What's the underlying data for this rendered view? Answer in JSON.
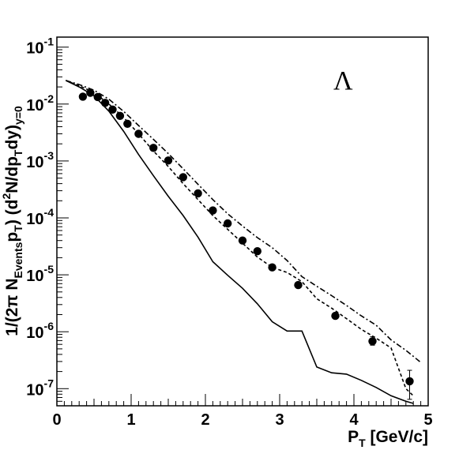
{
  "chart_data": {
    "type": "scatter",
    "annotation": "Λ",
    "xlabel": {
      "main": "P",
      "sub": "T",
      "rest": " [GeV/c]"
    },
    "ylabel": {
      "parts": [
        {
          "t": "1/(2π N",
          "s": "n"
        },
        {
          "t": "Events",
          "s": "sub"
        },
        {
          "t": "p",
          "s": "n"
        },
        {
          "t": "T",
          "s": "sub"
        },
        {
          "t": ") (d",
          "s": "n"
        },
        {
          "t": "2",
          "s": "sup"
        },
        {
          "t": "N/dp",
          "s": "n"
        },
        {
          "t": "T",
          "s": "sub"
        },
        {
          "t": "dy)",
          "s": "n"
        },
        {
          "t": "y=0",
          "s": "sub"
        }
      ]
    },
    "xlim": [
      0,
      5
    ],
    "ylim": [
      5e-08,
      0.15
    ],
    "ylog": true,
    "grid": false,
    "x_ticks": [
      {
        "v": 0,
        "label": "0"
      },
      {
        "v": 1,
        "label": "1"
      },
      {
        "v": 2,
        "label": "2"
      },
      {
        "v": 3,
        "label": "3"
      },
      {
        "v": 4,
        "label": "4"
      },
      {
        "v": 5,
        "label": "5"
      }
    ],
    "y_ticks": [
      {
        "v": 1e-07,
        "base": "10",
        "exp": "-7"
      },
      {
        "v": 1e-06,
        "base": "10",
        "exp": "-6"
      },
      {
        "v": 1e-05,
        "base": "10",
        "exp": "-5"
      },
      {
        "v": 0.0001,
        "base": "10",
        "exp": "-4"
      },
      {
        "v": 0.001,
        "base": "10",
        "exp": "-3"
      },
      {
        "v": 0.01,
        "base": "10",
        "exp": "-2"
      },
      {
        "v": 0.1,
        "base": "10",
        "exp": "-1"
      }
    ],
    "points": [
      {
        "x": 0.35,
        "y": 0.0135
      },
      {
        "x": 0.45,
        "y": 0.0158
      },
      {
        "x": 0.55,
        "y": 0.0133
      },
      {
        "x": 0.65,
        "y": 0.0105
      },
      {
        "x": 0.75,
        "y": 0.008
      },
      {
        "x": 0.85,
        "y": 0.0062
      },
      {
        "x": 0.95,
        "y": 0.0045
      },
      {
        "x": 1.1,
        "y": 0.003
      },
      {
        "x": 1.3,
        "y": 0.0017
      },
      {
        "x": 1.5,
        "y": 0.00102
      },
      {
        "x": 1.7,
        "y": 0.00052
      },
      {
        "x": 1.9,
        "y": 0.00027
      },
      {
        "x": 2.1,
        "y": 0.000135
      },
      {
        "x": 2.3,
        "y": 8e-05
      },
      {
        "x": 2.5,
        "y": 4e-05
      },
      {
        "x": 2.7,
        "y": 2.6e-05
      },
      {
        "x": 2.9,
        "y": 1.35e-05
      },
      {
        "x": 3.25,
        "y": 6.6e-06
      },
      {
        "x": 3.75,
        "y": 1.9e-06
      },
      {
        "x": 4.25,
        "y": 6.8e-07,
        "err": [
          5.8e-07,
          8.2e-07
        ]
      },
      {
        "x": 4.75,
        "y": 1.35e-07,
        "err": [
          6.5e-08,
          2.1e-07
        ]
      }
    ],
    "curves": [
      {
        "style": "solid",
        "x": [
          0.12,
          0.3,
          0.5,
          0.7,
          0.9,
          1.1,
          1.3,
          1.5,
          1.7,
          1.9,
          2.1,
          2.3,
          2.5,
          2.7,
          2.9,
          3.1,
          3.3,
          3.5,
          3.7,
          3.9,
          4.1,
          4.3,
          4.5,
          4.7,
          4.8
        ],
        "y": [
          0.026,
          0.02,
          0.014,
          0.0075,
          0.0033,
          0.0013,
          0.00055,
          0.00024,
          0.00011,
          4.6e-05,
          1.7e-05,
          9.8e-06,
          5.8e-06,
          3.1e-06,
          1.5e-06,
          1.03e-06,
          1.03e-06,
          2.4e-07,
          1.9e-07,
          1.8e-07,
          1.4e-07,
          1.05e-07,
          7.5e-08,
          6e-08,
          5.5e-08
        ]
      },
      {
        "style": "dotted",
        "x": [
          0.12,
          0.3,
          0.5,
          0.7,
          0.9,
          1.1,
          1.3,
          1.5,
          1.7,
          1.9,
          2.1,
          2.3,
          2.5,
          2.7,
          2.9,
          3.1,
          3.3,
          3.5,
          3.7,
          3.9,
          4.1,
          4.3,
          4.5,
          4.7,
          4.8
        ],
        "y": [
          0.026,
          0.021,
          0.016,
          0.01,
          0.0058,
          0.003,
          0.0015,
          0.0008,
          0.0004,
          0.00021,
          0.00011,
          6.3e-05,
          3.6e-05,
          2.05e-05,
          1.35e-05,
          1.1e-05,
          7.6e-06,
          3.8e-06,
          2.6e-06,
          1.7e-06,
          1.1e-06,
          7.7e-07,
          5.2e-07,
          1e-07,
          7.5e-08
        ]
      },
      {
        "style": "dashdot",
        "x": [
          0.12,
          0.3,
          0.5,
          0.7,
          0.9,
          1.1,
          1.3,
          1.5,
          1.7,
          1.9,
          2.1,
          2.3,
          2.5,
          2.7,
          2.9,
          3.1,
          3.3,
          3.5,
          3.7,
          3.9,
          4.1,
          4.3,
          4.5,
          4.7,
          4.9
        ],
        "y": [
          0.026,
          0.022,
          0.0175,
          0.0122,
          0.0074,
          0.0042,
          0.0024,
          0.00135,
          0.00073,
          0.00039,
          0.00021,
          0.000118,
          7.2e-05,
          4.5e-05,
          3e-05,
          1.78e-05,
          9.3e-06,
          6.3e-06,
          4.3e-06,
          2.9e-06,
          1.9e-06,
          1.3e-06,
          7.2e-07,
          4.7e-07,
          2.9e-07
        ]
      }
    ]
  }
}
